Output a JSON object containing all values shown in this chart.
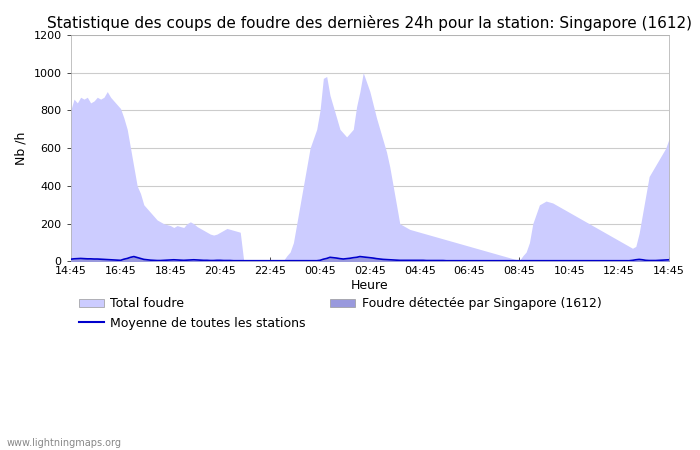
{
  "title": "Statistique des coups de foudre des dernières 24h pour la station: Singapore (1612)",
  "ylabel": "Nb /h",
  "xlabel": "Heure",
  "watermark": "www.lightningmaps.org",
  "ylim": [
    0,
    1200
  ],
  "yticks": [
    0,
    200,
    400,
    600,
    800,
    1000,
    1200
  ],
  "x_labels": [
    "14:45",
    "16:45",
    "18:45",
    "20:45",
    "22:45",
    "00:45",
    "02:45",
    "04:45",
    "06:45",
    "08:45",
    "10:45",
    "12:45",
    "14:45"
  ],
  "legend": {
    "total_foudre_label": "Total foudre",
    "total_foudre_color": "#ccccff",
    "detected_label": "Foudre détectée par Singapore (1612)",
    "detected_color": "#9999dd",
    "moyenne_label": "Moyenne de toutes les stations",
    "moyenne_color": "#0000cc"
  },
  "total_foudre": [
    800,
    860,
    840,
    870,
    860,
    870,
    840,
    850,
    870,
    860,
    870,
    900,
    870,
    850,
    830,
    810,
    760,
    700,
    600,
    500,
    400,
    360,
    300,
    280,
    260,
    240,
    220,
    210,
    200,
    195,
    190,
    180,
    190,
    185,
    180,
    200,
    210,
    200,
    185,
    175,
    165,
    155,
    145,
    140,
    145,
    155,
    165,
    175,
    170,
    165,
    160,
    155,
    10,
    5,
    5,
    5,
    5,
    5,
    5,
    5,
    5,
    5,
    5,
    5,
    5,
    30,
    50,
    100,
    200,
    300,
    400,
    500,
    600,
    650,
    700,
    800,
    970,
    980,
    880,
    820,
    760,
    700,
    680,
    660,
    680,
    700,
    820,
    900,
    1000,
    950,
    900,
    830,
    760,
    700,
    640,
    580,
    500,
    400,
    300,
    200,
    190,
    180,
    170,
    165,
    160,
    155,
    150,
    145,
    140,
    135,
    130,
    125,
    120,
    115,
    110,
    105,
    100,
    95,
    90,
    85,
    80,
    75,
    70,
    65,
    60,
    55,
    50,
    45,
    40,
    35,
    30,
    25,
    20,
    15,
    10,
    5,
    30,
    50,
    100,
    200,
    250,
    300,
    310,
    320,
    315,
    310,
    300,
    290,
    280,
    270,
    260,
    250,
    240,
    230,
    220,
    210,
    200,
    190,
    180,
    170,
    160,
    150,
    140,
    130,
    120,
    110,
    100,
    90,
    80,
    70,
    80,
    150,
    250,
    350,
    450,
    480,
    510,
    540,
    570,
    600,
    650,
    700
  ],
  "detected": [
    10,
    12,
    14,
    15,
    16,
    15,
    14,
    13,
    12,
    11,
    10,
    9,
    8,
    7,
    6,
    5,
    10,
    15,
    20,
    25,
    20,
    15,
    10,
    8,
    6,
    5,
    4,
    4,
    5,
    6,
    7,
    8,
    7,
    6,
    5,
    6,
    7,
    8,
    7,
    6,
    5,
    5,
    4,
    4,
    5,
    5,
    4,
    4,
    4,
    3,
    3,
    3,
    3,
    3,
    3,
    3,
    3,
    3,
    3,
    3,
    3,
    3,
    3,
    3,
    3,
    3,
    3,
    3,
    3,
    3,
    3,
    3,
    3,
    3,
    3,
    5,
    10,
    15,
    20,
    18,
    16,
    14,
    12,
    14,
    16,
    18,
    20,
    25,
    22,
    20,
    18,
    16,
    14,
    12,
    10,
    9,
    8,
    7,
    6,
    5,
    5,
    5,
    5,
    5,
    5,
    5,
    5,
    4,
    4,
    4,
    4,
    4,
    4,
    3,
    3,
    3,
    3,
    3,
    3,
    3,
    3,
    3,
    3,
    3,
    3,
    3,
    3,
    3,
    3,
    3,
    3,
    3,
    3,
    3,
    3,
    3,
    3,
    3,
    3,
    3,
    3,
    3,
    3,
    3,
    3,
    3,
    3,
    3,
    3,
    3,
    3,
    3,
    3,
    3,
    3,
    3,
    3,
    3,
    3,
    3,
    3,
    3,
    3,
    3,
    3,
    3,
    3,
    3,
    3,
    5,
    8,
    10,
    8,
    5,
    4,
    4,
    4,
    5,
    6,
    7,
    8
  ],
  "moyenne": [
    12,
    14,
    15,
    16,
    15,
    14,
    14,
    13,
    13,
    12,
    11,
    10,
    9,
    8,
    7,
    6,
    12,
    16,
    22,
    26,
    21,
    16,
    11,
    9,
    7,
    6,
    5,
    5,
    6,
    7,
    8,
    9,
    8,
    7,
    6,
    7,
    8,
    9,
    8,
    7,
    6,
    6,
    5,
    5,
    6,
    6,
    5,
    5,
    5,
    4,
    4,
    4,
    4,
    4,
    4,
    4,
    4,
    4,
    4,
    4,
    4,
    4,
    4,
    4,
    4,
    4,
    4,
    4,
    4,
    4,
    4,
    4,
    4,
    4,
    4,
    6,
    12,
    16,
    22,
    20,
    18,
    15,
    13,
    15,
    17,
    20,
    22,
    26,
    24,
    22,
    20,
    18,
    15,
    13,
    11,
    10,
    9,
    8,
    7,
    6,
    6,
    6,
    6,
    6,
    6,
    6,
    6,
    5,
    5,
    5,
    5,
    5,
    5,
    4,
    4,
    4,
    4,
    4,
    4,
    4,
    4,
    4,
    4,
    4,
    4,
    4,
    4,
    4,
    4,
    4,
    4,
    4,
    4,
    4,
    4,
    4,
    4,
    4,
    4,
    4,
    4,
    4,
    4,
    4,
    4,
    4,
    4,
    4,
    4,
    4,
    4,
    4,
    4,
    4,
    4,
    4,
    4,
    4,
    4,
    4,
    4,
    4,
    4,
    4,
    4,
    4,
    4,
    4,
    4,
    6,
    9,
    11,
    9,
    6,
    5,
    5,
    5,
    6,
    7,
    8,
    9
  ],
  "background_color": "#ffffff",
  "plot_bg_color": "#ffffff",
  "grid_color": "#cccccc",
  "title_fontsize": 11,
  "axis_fontsize": 9,
  "tick_fontsize": 8
}
